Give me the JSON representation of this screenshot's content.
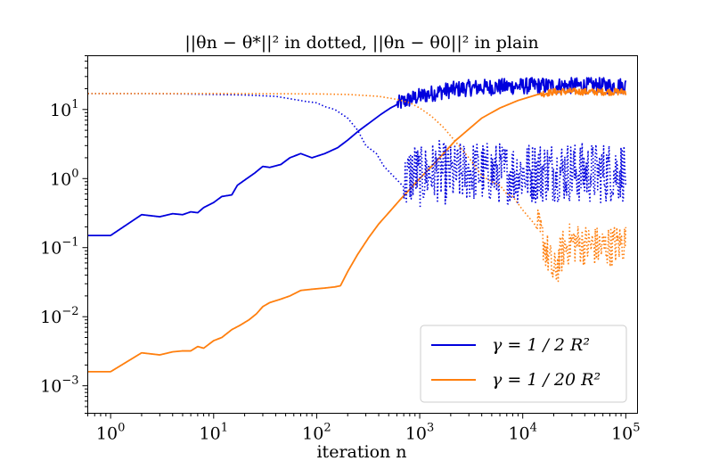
{
  "chart_data": {
    "type": "line",
    "title": "||θn − θ*||² in dotted, ||θn − θ0||² in plain",
    "xlabel": "iteration n",
    "ylabel": "",
    "xscale": "log",
    "yscale": "log",
    "xlim": [
      0.6,
      130000
    ],
    "ylim": [
      0.0004,
      60
    ],
    "x_ticks": [
      {
        "value": 1,
        "base": "10",
        "exp": "0"
      },
      {
        "value": 10,
        "base": "10",
        "exp": "1"
      },
      {
        "value": 100,
        "base": "10",
        "exp": "2"
      },
      {
        "value": 1000,
        "base": "10",
        "exp": "3"
      },
      {
        "value": 10000,
        "base": "10",
        "exp": "4"
      },
      {
        "value": 100000,
        "base": "10",
        "exp": "5"
      }
    ],
    "y_ticks": [
      {
        "value": 0.001,
        "base": "10",
        "exp": "−3"
      },
      {
        "value": 0.01,
        "base": "10",
        "exp": "−2"
      },
      {
        "value": 0.1,
        "base": "10",
        "exp": "−1"
      },
      {
        "value": 1,
        "base": "10",
        "exp": "0"
      },
      {
        "value": 10,
        "base": "10",
        "exp": "1"
      }
    ],
    "legend_position": "lower-right",
    "series": [
      {
        "name": "γ = 1 / 2 R²",
        "color": "#0000dd",
        "style": "solid",
        "legend": true,
        "points": [
          [
            0.6,
            0.15
          ],
          [
            1,
            0.15
          ],
          [
            2,
            0.3
          ],
          [
            3,
            0.28
          ],
          [
            4,
            0.31
          ],
          [
            5,
            0.3
          ],
          [
            6,
            0.33
          ],
          [
            7,
            0.32
          ],
          [
            8,
            0.38
          ],
          [
            10,
            0.45
          ],
          [
            12,
            0.55
          ],
          [
            15,
            0.58
          ],
          [
            17,
            0.8
          ],
          [
            20,
            0.95
          ],
          [
            25,
            1.2
          ],
          [
            30,
            1.5
          ],
          [
            35,
            1.45
          ],
          [
            45,
            1.6
          ],
          [
            55,
            2.0
          ],
          [
            70,
            2.3
          ],
          [
            90,
            2.0
          ],
          [
            120,
            2.3
          ],
          [
            160,
            2.8
          ],
          [
            200,
            3.6
          ],
          [
            260,
            5.0
          ],
          [
            330,
            6.5
          ],
          [
            420,
            8.5
          ],
          [
            520,
            10.5
          ],
          [
            650,
            12.5
          ],
          [
            800,
            14
          ],
          [
            1000,
            15.5
          ],
          [
            1300,
            17
          ],
          [
            1700,
            18.5
          ],
          [
            2200,
            19.5
          ],
          [
            3000,
            20.5
          ],
          [
            4500,
            21
          ],
          [
            7000,
            21.5
          ],
          [
            12000,
            22
          ],
          [
            20000,
            22
          ],
          [
            35000,
            22
          ],
          [
            60000,
            22
          ],
          [
            100000,
            22
          ]
        ],
        "noise": {
          "from": 600,
          "amp": 0.12
        }
      },
      {
        "name": "γ = 1 / 20 R²",
        "color": "#ff7f0e",
        "style": "solid",
        "legend": true,
        "points": [
          [
            0.6,
            0.0016
          ],
          [
            1,
            0.0016
          ],
          [
            2,
            0.003
          ],
          [
            3,
            0.0028
          ],
          [
            4,
            0.0031
          ],
          [
            5,
            0.0032
          ],
          [
            6,
            0.0032
          ],
          [
            7,
            0.0037
          ],
          [
            8,
            0.0035
          ],
          [
            10,
            0.0045
          ],
          [
            12,
            0.005
          ],
          [
            15,
            0.0065
          ],
          [
            18,
            0.0075
          ],
          [
            22,
            0.009
          ],
          [
            26,
            0.011
          ],
          [
            30,
            0.014
          ],
          [
            35,
            0.016
          ],
          [
            45,
            0.018
          ],
          [
            55,
            0.02
          ],
          [
            70,
            0.024
          ],
          [
            90,
            0.025
          ],
          [
            120,
            0.026
          ],
          [
            150,
            0.027
          ],
          [
            170,
            0.028
          ],
          [
            200,
            0.045
          ],
          [
            250,
            0.08
          ],
          [
            320,
            0.14
          ],
          [
            400,
            0.22
          ],
          [
            500,
            0.32
          ],
          [
            650,
            0.5
          ],
          [
            800,
            0.7
          ],
          [
            1000,
            1.0
          ],
          [
            1300,
            1.5
          ],
          [
            1700,
            2.3
          ],
          [
            2200,
            3.5
          ],
          [
            3000,
            5.2
          ],
          [
            4000,
            7.5
          ],
          [
            6000,
            10.5
          ],
          [
            9000,
            13.5
          ],
          [
            14000,
            16.5
          ],
          [
            20000,
            18
          ],
          [
            30000,
            18.2
          ],
          [
            45000,
            18
          ],
          [
            70000,
            18
          ],
          [
            100000,
            18
          ]
        ],
        "noise": {
          "from": 15000,
          "amp": 0.05
        }
      },
      {
        "name": "γ = 1 / 2 R² (dotted)",
        "color": "#0000dd",
        "style": "dotted",
        "legend": false,
        "points": [
          [
            0.6,
            17
          ],
          [
            1,
            17
          ],
          [
            2,
            17
          ],
          [
            5,
            16.8
          ],
          [
            10,
            16.5
          ],
          [
            20,
            16.2
          ],
          [
            40,
            15.5
          ],
          [
            60,
            14
          ],
          [
            80,
            13
          ],
          [
            100,
            12.5
          ],
          [
            120,
            11
          ],
          [
            150,
            10
          ],
          [
            200,
            7.5
          ],
          [
            250,
            5
          ],
          [
            300,
            3
          ],
          [
            380,
            2.3
          ],
          [
            450,
            1.5
          ],
          [
            550,
            1.1
          ],
          [
            650,
            0.85
          ],
          [
            700,
            0.75
          ],
          [
            800,
            1.1
          ],
          [
            900,
            1.3
          ],
          [
            1000,
            1.0
          ],
          [
            1200,
            1.2
          ],
          [
            1500,
            1.3
          ],
          [
            2000,
            1.1
          ],
          [
            3000,
            1.3
          ],
          [
            5000,
            1.2
          ],
          [
            10000,
            1.2
          ],
          [
            20000,
            1.3
          ],
          [
            50000,
            1.2
          ],
          [
            100000,
            1.3
          ]
        ],
        "noise": {
          "from": 700,
          "amp": 0.45
        }
      },
      {
        "name": "γ = 1 / 20 R² (dotted)",
        "color": "#ff7f0e",
        "style": "dotted",
        "legend": false,
        "points": [
          [
            0.6,
            17
          ],
          [
            1,
            17
          ],
          [
            10,
            17
          ],
          [
            100,
            16.8
          ],
          [
            200,
            16.5
          ],
          [
            400,
            15.5
          ],
          [
            600,
            14
          ],
          [
            800,
            12.5
          ],
          [
            1000,
            10.5
          ],
          [
            1300,
            8
          ],
          [
            1700,
            5.5
          ],
          [
            2200,
            3.5
          ],
          [
            3000,
            2.0
          ],
          [
            4000,
            1.1
          ],
          [
            5000,
            0.9
          ],
          [
            6000,
            0.8
          ],
          [
            7000,
            0.6
          ],
          [
            8000,
            0.55
          ],
          [
            10000,
            0.35
          ],
          [
            13000,
            0.22
          ],
          [
            16000,
            0.12
          ],
          [
            18000,
            0.07
          ],
          [
            20000,
            0.04
          ],
          [
            22000,
            0.06
          ],
          [
            25000,
            0.1
          ],
          [
            30000,
            0.12
          ],
          [
            40000,
            0.11
          ],
          [
            60000,
            0.1
          ],
          [
            100000,
            0.12
          ]
        ],
        "noise": {
          "from": 14000,
          "amp": 0.3
        }
      }
    ]
  }
}
